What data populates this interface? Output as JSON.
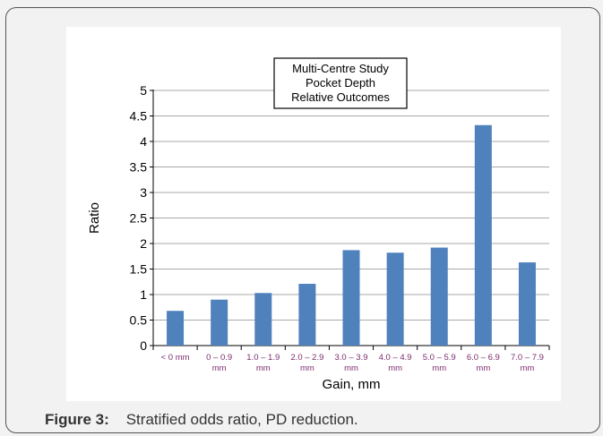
{
  "caption": {
    "label": "Figure 3:",
    "text": "Stratified odds ratio, PD reduction."
  },
  "chart_data": {
    "type": "bar",
    "title_lines": [
      "Multi-Centre Study",
      "Pocket Depth",
      "Relative Outcomes"
    ],
    "xlabel": "Gain, mm",
    "ylabel": "Ratio",
    "ylim": [
      0,
      5
    ],
    "yticks": [
      "0",
      "0.5",
      "1",
      "1.5",
      "2",
      "2.5",
      "3",
      "3.5",
      "4",
      "4.5",
      "5"
    ],
    "grid": true,
    "legend": "none",
    "categories": [
      [
        "< 0 mm"
      ],
      [
        "0 – 0.9",
        "mm"
      ],
      [
        "1.0 – 1.9",
        "mm"
      ],
      [
        "2.0 – 2.9",
        "mm"
      ],
      [
        "3.0 – 3.9",
        "mm"
      ],
      [
        "4.0 – 4.9",
        "mm"
      ],
      [
        "5.0 – 5.9",
        "mm"
      ],
      [
        "6.0 – 6.9",
        "mm"
      ],
      [
        "7.0 – 7.9",
        "mm"
      ]
    ],
    "values": [
      0.68,
      0.9,
      1.03,
      1.21,
      1.87,
      1.82,
      1.92,
      4.32,
      1.63
    ],
    "colors": {
      "bar": "#4f81bd",
      "grid": "#8c8c8c",
      "axis": "#000000",
      "tick_label": "#7b2c6e"
    }
  }
}
